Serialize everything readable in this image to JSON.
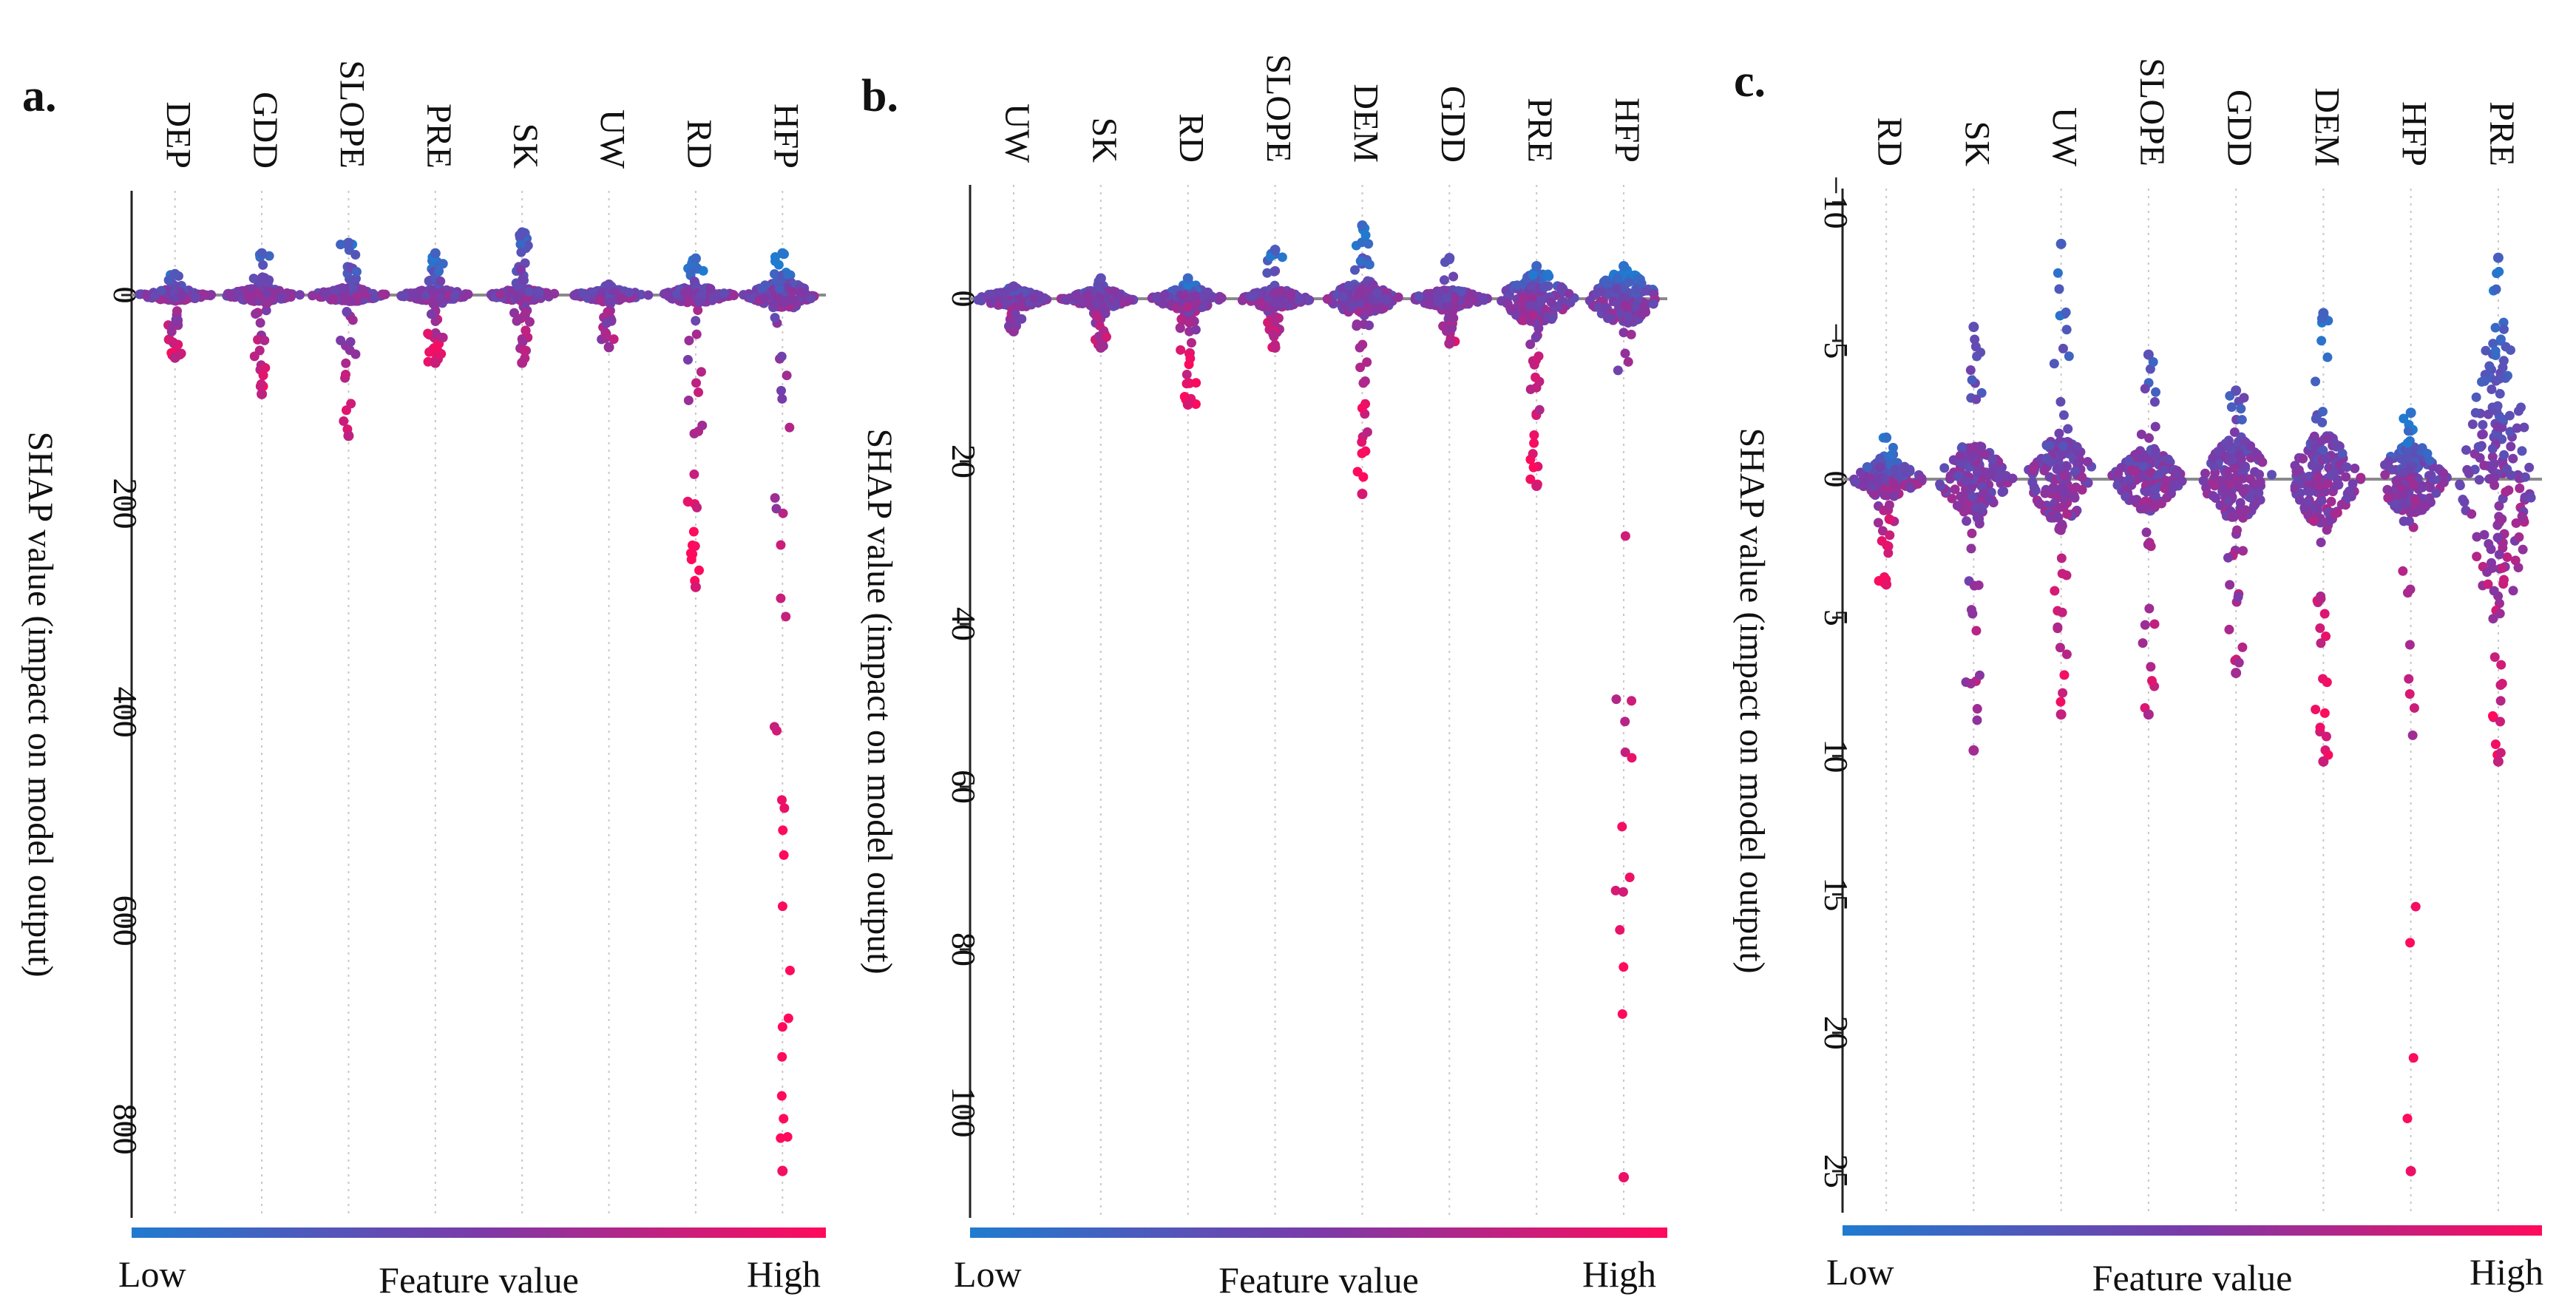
{
  "figure": {
    "colors": {
      "low": "#1f7bd0",
      "mid": "#7b3aa8",
      "high": "#ff0a5c",
      "zero_line": "#8a8a8a",
      "grid": "#c8c8c8",
      "axis": "#222222"
    },
    "colorbar": {
      "low_label": "Low",
      "high_label": "High",
      "title": "Feature value"
    }
  },
  "chart_data": [
    {
      "type": "scatter",
      "subtype": "beeswarm",
      "panel_label": "a.",
      "ylabel": "SHAP value (impact on model output)",
      "ylim": [
        -100,
        885
      ],
      "yticks": [
        0,
        200,
        400,
        600,
        800
      ],
      "ytick_labels": [
        "0",
        "200",
        "400",
        "600",
        "800"
      ],
      "features": [
        {
          "name": "DEP",
          "min": -20,
          "max": 60,
          "core": 5,
          "skew": 0.45
        },
        {
          "name": "GDD",
          "min": -40,
          "max": 95,
          "core": 6,
          "skew": 0.5
        },
        {
          "name": "SLOPE",
          "min": -50,
          "max": 135,
          "core": 6,
          "skew": 0.5
        },
        {
          "name": "PRE",
          "min": -40,
          "max": 65,
          "core": 5,
          "skew": 0.6
        },
        {
          "name": "SK",
          "min": -60,
          "max": 65,
          "core": 5,
          "skew": 0.4
        },
        {
          "name": "UW",
          "min": -10,
          "max": 50,
          "core": 5,
          "skew": 0.2
        },
        {
          "name": "RD",
          "min": -35,
          "max": 280,
          "core": 7,
          "skew": 0.7
        },
        {
          "name": "HFP",
          "min": -40,
          "max": 840,
          "core": 12,
          "skew": 0.9
        }
      ]
    },
    {
      "type": "scatter",
      "subtype": "beeswarm",
      "panel_label": "b.",
      "ylabel": "SHAP value (impact on model output)",
      "ylim": [
        -14,
        113
      ],
      "yticks": [
        0,
        20,
        40,
        60,
        80,
        100
      ],
      "ytick_labels": [
        "0",
        "20",
        "40",
        "60",
        "80",
        "100"
      ],
      "features": [
        {
          "name": "UW",
          "min": -1.5,
          "max": 4,
          "core": 1,
          "skew": 0.15
        },
        {
          "name": "SK",
          "min": -2.5,
          "max": 6,
          "core": 1,
          "skew": 0.3
        },
        {
          "name": "RD",
          "min": -2.5,
          "max": 13,
          "core": 1.2,
          "skew": 0.7
        },
        {
          "name": "SLOPE",
          "min": -6,
          "max": 6,
          "core": 1,
          "skew": 0.5
        },
        {
          "name": "DEM",
          "min": -9,
          "max": 24,
          "core": 1.8,
          "skew": 0.7
        },
        {
          "name": "GDD",
          "min": -5,
          "max": 5.5,
          "core": 1,
          "skew": 0.35
        },
        {
          "name": "PRE",
          "min": -4,
          "max": 23,
          "core": 3,
          "skew": 0.65
        },
        {
          "name": "HFP",
          "min": -4,
          "max": 108,
          "core": 3,
          "skew": 0.85
        }
      ]
    },
    {
      "type": "scatter",
      "subtype": "beeswarm",
      "panel_label": "c.",
      "ylabel": "SHAP value (impact on model output)",
      "ylim": [
        -10.5,
        26.5
      ],
      "yticks": [
        -10,
        -5,
        0,
        5,
        10,
        15,
        20,
        25
      ],
      "ytick_labels": [
        "−10",
        "−5",
        "0",
        "5",
        "10",
        "15",
        "20",
        "25"
      ],
      "features": [
        {
          "name": "RD",
          "min": -1.5,
          "max": 3.8,
          "core": 0.6,
          "skew": 0.8
        },
        {
          "name": "SK",
          "min": -5.5,
          "max": 9.8,
          "core": 1.2,
          "skew": 0.3
        },
        {
          "name": "UW",
          "min": -8.5,
          "max": 8.5,
          "core": 1.4,
          "skew": 0.55
        },
        {
          "name": "SLOPE",
          "min": -4.5,
          "max": 8.5,
          "core": 1.1,
          "skew": 0.35
        },
        {
          "name": "GDD",
          "min": -3.2,
          "max": 7,
          "core": 1.4,
          "skew": 0.3
        },
        {
          "name": "DEM",
          "min": -6,
          "max": 10.2,
          "core": 1.6,
          "skew": 0.6
        },
        {
          "name": "HFP",
          "min": -2.4,
          "max": 25,
          "core": 1.2,
          "skew": 0.85
        },
        {
          "name": "PRE",
          "min": -8,
          "max": 10.2,
          "core": 5,
          "skew": 0.55
        }
      ]
    }
  ]
}
